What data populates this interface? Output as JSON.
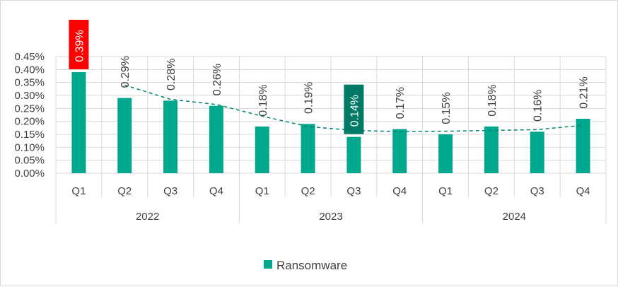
{
  "chart_data": {
    "type": "bar",
    "groups": [
      {
        "label": "2022",
        "categories": [
          "Q1",
          "Q2",
          "Q3",
          "Q4"
        ]
      },
      {
        "label": "2023",
        "categories": [
          "Q1",
          "Q2",
          "Q3",
          "Q4"
        ]
      },
      {
        "label": "2024",
        "categories": [
          "Q1",
          "Q2",
          "Q3",
          "Q4"
        ]
      }
    ],
    "series": [
      {
        "name": "Ransomware",
        "color": "#00a88e",
        "values": [
          0.39,
          0.29,
          0.28,
          0.26,
          0.18,
          0.19,
          0.14,
          0.17,
          0.15,
          0.18,
          0.16,
          0.21
        ],
        "labels": [
          "0.39%",
          "0.29%",
          "0.28%",
          "0.26%",
          "0.18%",
          "0.19%",
          "0.14%",
          "0.17%",
          "0.15%",
          "0.18%",
          "0.16%",
          "0.21%"
        ]
      }
    ],
    "trendline": {
      "style": "dashed",
      "color": "#00856f",
      "values": [
        0.34,
        0.285,
        0.265,
        0.22,
        0.18,
        0.165,
        0.16,
        0.162,
        0.165,
        0.168,
        0.185
      ]
    },
    "highlights": [
      {
        "index": 0,
        "color": "#ff0000"
      },
      {
        "index": 6,
        "color": "#007a65"
      }
    ],
    "y_ticks": [
      "0.00%",
      "0.05%",
      "0.10%",
      "0.15%",
      "0.20%",
      "0.25%",
      "0.30%",
      "0.35%",
      "0.40%",
      "0.45%"
    ],
    "ylim": [
      0,
      0.45
    ],
    "grid": true,
    "legend": {
      "position": "bottom"
    },
    "title": "",
    "xlabel": "",
    "ylabel": ""
  }
}
